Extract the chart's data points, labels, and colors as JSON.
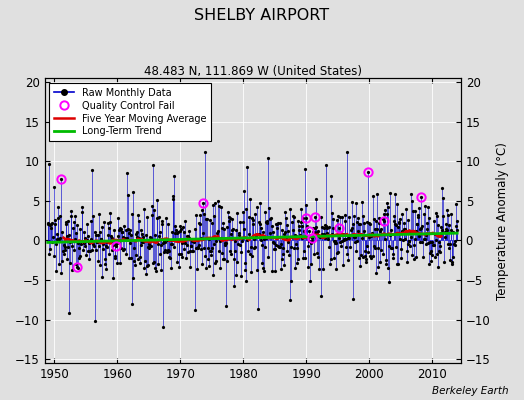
{
  "title": "SHELBY AIRPORT",
  "subtitle": "48.483 N, 111.869 W (United States)",
  "attribution": "Berkeley Earth",
  "ylabel_right": "Temperature Anomaly (°C)",
  "xlim": [
    1948.5,
    2014.5
  ],
  "ylim": [
    -15.5,
    20.5
  ],
  "yticks": [
    -15,
    -10,
    -5,
    0,
    5,
    10,
    15,
    20
  ],
  "xticks": [
    1950,
    1960,
    1970,
    1980,
    1990,
    2000,
    2010
  ],
  "raw_color": "#0000cc",
  "ma_color": "#dd0000",
  "trend_color": "#00bb00",
  "qc_color": "#ff00ff",
  "background_color": "#e0e0e0",
  "grid_color": "#ffffff",
  "seed": 137
}
